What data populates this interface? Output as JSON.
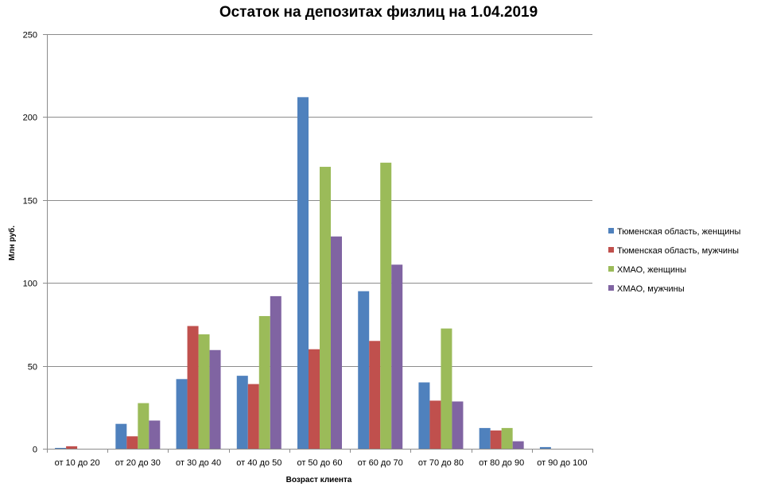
{
  "chart_data": {
    "type": "bar",
    "title": "Остаток на депозитах физлиц на 1.04.2019",
    "xlabel": "Возраст клиента",
    "ylabel": "Млн руб.",
    "ylim": [
      0,
      250
    ],
    "yticks": [
      0,
      50,
      100,
      150,
      200,
      250
    ],
    "grid": true,
    "legend_position": "right",
    "categories": [
      "от 10 до 20",
      "от 20 до 30",
      "от 30 до 40",
      "от 40 до 50",
      "от 50 до 60",
      "от 60 до 70",
      "от 70 до 80",
      "от 80 до 90",
      "от 90 до 100"
    ],
    "series": [
      {
        "name": "Тюменская область, женщины",
        "color": "#4F81BD",
        "values": [
          0.5,
          15,
          42,
          44,
          212,
          95,
          40,
          12.5,
          1
        ]
      },
      {
        "name": "Тюменская область, мужчины",
        "color": "#C0504D",
        "values": [
          1.5,
          7.5,
          74,
          39,
          60,
          65,
          29,
          11,
          0
        ]
      },
      {
        "name": "ХМАО, женщины",
        "color": "#9BBB59",
        "values": [
          0,
          27.5,
          69,
          80,
          170,
          172.5,
          72.5,
          12.5,
          0
        ]
      },
      {
        "name": "ХМАО, мужчины",
        "color": "#8064A2",
        "values": [
          0,
          17,
          59.5,
          92,
          128,
          111,
          28.5,
          4.5,
          0
        ]
      }
    ]
  }
}
